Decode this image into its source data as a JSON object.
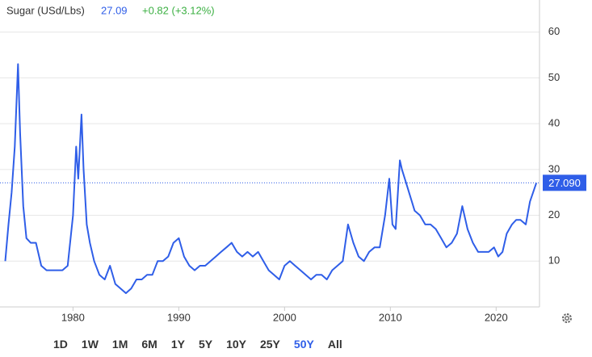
{
  "chart_data": {
    "type": "line",
    "title": "Sugar (USd/Lbs)",
    "price": "27.09",
    "change": "+0.82 (+3.12%)",
    "color": "#2f5ee8",
    "x": [
      1973.6,
      1973.9,
      1974.2,
      1974.5,
      1974.8,
      1975.0,
      1975.3,
      1975.6,
      1976.0,
      1976.5,
      1977.0,
      1977.5,
      1978.0,
      1978.5,
      1979.0,
      1979.5,
      1980.0,
      1980.3,
      1980.5,
      1980.8,
      1981.0,
      1981.3,
      1981.6,
      1982.0,
      1982.5,
      1983.0,
      1983.5,
      1984.0,
      1984.5,
      1985.0,
      1985.5,
      1986.0,
      1986.5,
      1987.0,
      1987.5,
      1988.0,
      1988.5,
      1989.0,
      1989.5,
      1990.0,
      1990.5,
      1991.0,
      1991.5,
      1992.0,
      1992.5,
      1993.0,
      1993.5,
      1994.0,
      1994.5,
      1995.0,
      1995.5,
      1996.0,
      1996.5,
      1997.0,
      1997.5,
      1998.0,
      1998.5,
      1999.0,
      1999.5,
      2000.0,
      2000.5,
      2001.0,
      2001.5,
      2002.0,
      2002.5,
      2003.0,
      2003.5,
      2004.0,
      2004.5,
      2005.0,
      2005.5,
      2006.0,
      2006.5,
      2007.0,
      2007.5,
      2008.0,
      2008.5,
      2009.0,
      2009.5,
      2009.9,
      2010.2,
      2010.5,
      2010.9,
      2011.1,
      2011.5,
      2011.9,
      2012.3,
      2012.8,
      2013.3,
      2013.8,
      2014.3,
      2014.8,
      2015.3,
      2015.8,
      2016.3,
      2016.8,
      2017.3,
      2017.8,
      2018.3,
      2018.8,
      2019.3,
      2019.8,
      2020.2,
      2020.6,
      2021.0,
      2021.5,
      2021.9,
      2022.3,
      2022.8,
      2023.2,
      2023.5,
      2023.8
    ],
    "values": [
      10,
      18,
      25,
      35,
      53,
      38,
      22,
      15,
      14,
      14,
      9,
      8,
      8,
      8,
      8,
      9,
      20,
      35,
      28,
      42,
      30,
      18,
      14,
      10,
      7,
      6,
      9,
      5,
      4,
      3,
      4,
      6,
      6,
      7,
      7,
      10,
      10,
      11,
      14,
      15,
      11,
      9,
      8,
      9,
      9,
      10,
      11,
      12,
      13,
      14,
      12,
      11,
      12,
      11,
      12,
      10,
      8,
      7,
      6,
      9,
      10,
      9,
      8,
      7,
      6,
      7,
      7,
      6,
      8,
      9,
      10,
      18,
      14,
      11,
      10,
      12,
      13,
      13,
      20,
      28,
      18,
      17,
      32,
      30,
      27,
      24,
      21,
      20,
      18,
      18,
      17,
      15,
      13,
      14,
      16,
      22,
      17,
      14,
      12,
      12,
      12,
      13,
      11,
      12,
      16,
      18,
      19,
      19,
      18,
      23,
      25,
      27.09
    ],
    "last_price": {
      "value": 27.09,
      "label": "27.090"
    },
    "xlim": [
      1973.1,
      2024.1
    ],
    "xticks": [
      1980,
      1990,
      2000,
      2010,
      2020
    ],
    "ylim": [
      0,
      67
    ],
    "yticks": [
      10,
      20,
      30,
      40,
      50,
      60
    ],
    "grid": true,
    "ranges": [
      {
        "label": "1D"
      },
      {
        "label": "1W"
      },
      {
        "label": "1M"
      },
      {
        "label": "6M"
      },
      {
        "label": "1Y"
      },
      {
        "label": "5Y"
      },
      {
        "label": "10Y"
      },
      {
        "label": "25Y"
      },
      {
        "label": "50Y",
        "active": true
      },
      {
        "label": "All"
      }
    ]
  }
}
